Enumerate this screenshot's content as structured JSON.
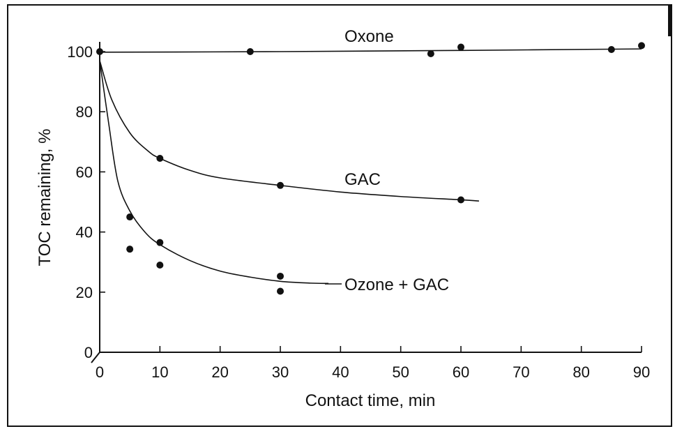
{
  "chart_data": {
    "type": "scatter",
    "xlabel": "Contact time, min",
    "ylabel": "TOC remaining, %",
    "xlim": [
      0,
      90
    ],
    "ylim": [
      0,
      100
    ],
    "xticks": [
      0,
      10,
      20,
      30,
      40,
      50,
      60,
      70,
      80,
      90
    ],
    "yticks": [
      0,
      20,
      40,
      60,
      80,
      100
    ],
    "grid": false,
    "legend": "none",
    "series": [
      {
        "name": "Oxone",
        "points": [
          [
            0,
            100
          ],
          [
            25,
            100
          ],
          [
            55,
            99.3
          ],
          [
            60,
            101.5
          ],
          [
            85,
            100.7
          ],
          [
            90,
            102
          ]
        ],
        "curve": [
          [
            0,
            99.8
          ],
          [
            30,
            100
          ],
          [
            60,
            100.4
          ],
          [
            90,
            100.9
          ]
        ]
      },
      {
        "name": "GAC",
        "points": [
          [
            10,
            64.5
          ],
          [
            30,
            55.5
          ],
          [
            60,
            50.7
          ]
        ],
        "curve": [
          [
            0,
            97
          ],
          [
            2,
            84
          ],
          [
            5,
            73
          ],
          [
            8,
            67
          ],
          [
            10,
            64.5
          ],
          [
            15,
            60.5
          ],
          [
            20,
            58
          ],
          [
            30,
            55.5
          ],
          [
            40,
            53.3
          ],
          [
            50,
            51.8
          ],
          [
            60,
            50.7
          ],
          [
            63,
            50.3
          ]
        ]
      },
      {
        "name": "Ozone + GAC",
        "points": [
          [
            5,
            45
          ],
          [
            5,
            34.3
          ],
          [
            10,
            36.5
          ],
          [
            10,
            29
          ],
          [
            30,
            25.3
          ],
          [
            30,
            20.3
          ]
        ],
        "curve": [
          [
            0,
            97
          ],
          [
            1.5,
            76
          ],
          [
            3,
            57
          ],
          [
            5,
            47
          ],
          [
            7.5,
            40
          ],
          [
            10,
            35.8
          ],
          [
            15,
            30.5
          ],
          [
            20,
            27
          ],
          [
            25,
            25
          ],
          [
            30,
            23.6
          ],
          [
            35,
            23
          ],
          [
            38,
            22.9
          ]
        ]
      }
    ]
  }
}
